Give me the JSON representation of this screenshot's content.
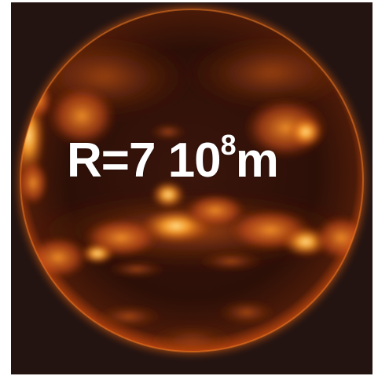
{
  "image": {
    "subject": "sun",
    "colors": {
      "background": "#241411",
      "disk_dark": "#2a0f08",
      "limb_glow": "#ff7a1a",
      "active_region": "#ffb02e",
      "hot_spot": "#ffe08a",
      "caption_text": "#ffffff"
    }
  },
  "caption": {
    "prefix": "R=7 10",
    "exponent": "8",
    "unit": "m"
  }
}
